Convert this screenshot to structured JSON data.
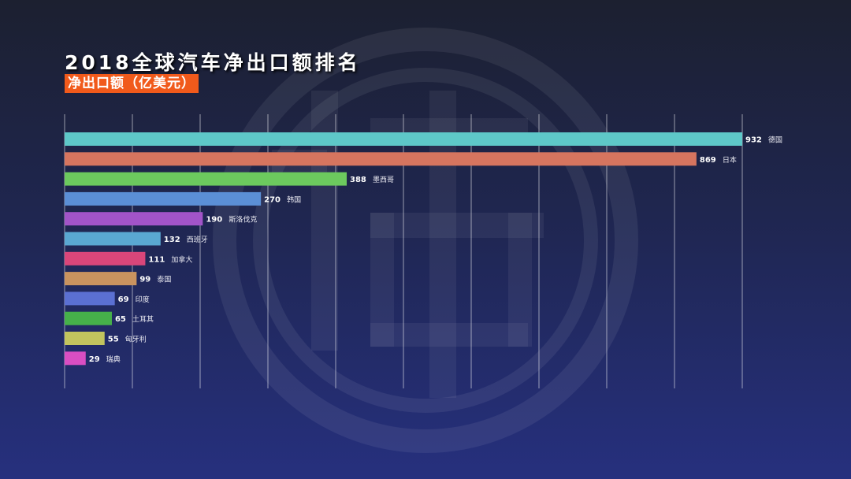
{
  "title": "2018全球汽车净出口额排名",
  "subtitle": "净出口额（亿美元）",
  "chart_data": {
    "type": "bar",
    "orientation": "horizontal",
    "title": "2018全球汽车净出口额排名",
    "subtitle": "净出口额（亿美元）",
    "xlim": [
      0,
      1000
    ],
    "grid": true,
    "categories": [
      "德国",
      "日本",
      "墨西哥",
      "韩国",
      "斯洛伐克",
      "西班牙",
      "加拿大",
      "泰国",
      "印度",
      "土耳其",
      "匈牙利",
      "瑞典"
    ],
    "values": [
      932,
      869,
      388,
      270,
      190,
      132,
      111,
      99,
      69,
      65,
      55,
      29
    ],
    "colors": [
      "#5ec8c8",
      "#d6755f",
      "#6cc95e",
      "#5b8fd6",
      "#a254c8",
      "#5aa8d2",
      "#d9467a",
      "#c9935f",
      "#5b70d2",
      "#46b04a",
      "#c2c45e",
      "#d94ec2"
    ]
  }
}
